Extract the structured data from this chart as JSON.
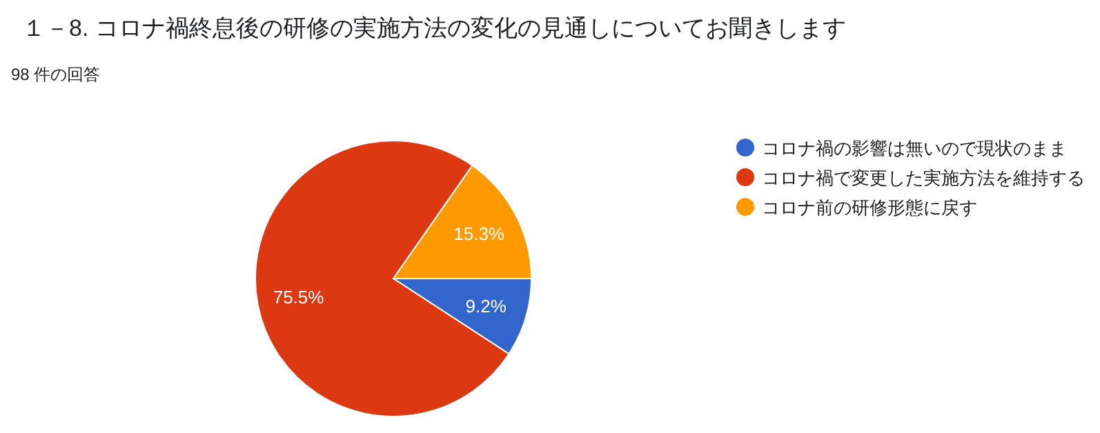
{
  "chart_data": {
    "type": "pie",
    "title": "１－8. コロナ禍終息後の研修の実施方法の変化の見通しについてお聞きします",
    "subtitle": "98 件の回答",
    "categories": [
      "コロナ禍の影響は無いので現状のまま",
      "コロナ禍で変更した実施方法を維持する",
      "コロナ前の研修形態に戻す"
    ],
    "values": [
      9.2,
      75.5,
      15.3
    ],
    "colors": [
      "#3366cc",
      "#dc3912",
      "#ff9900"
    ],
    "value_labels": [
      "9.2%",
      "75.5%",
      "15.3%"
    ],
    "legend": "right"
  }
}
